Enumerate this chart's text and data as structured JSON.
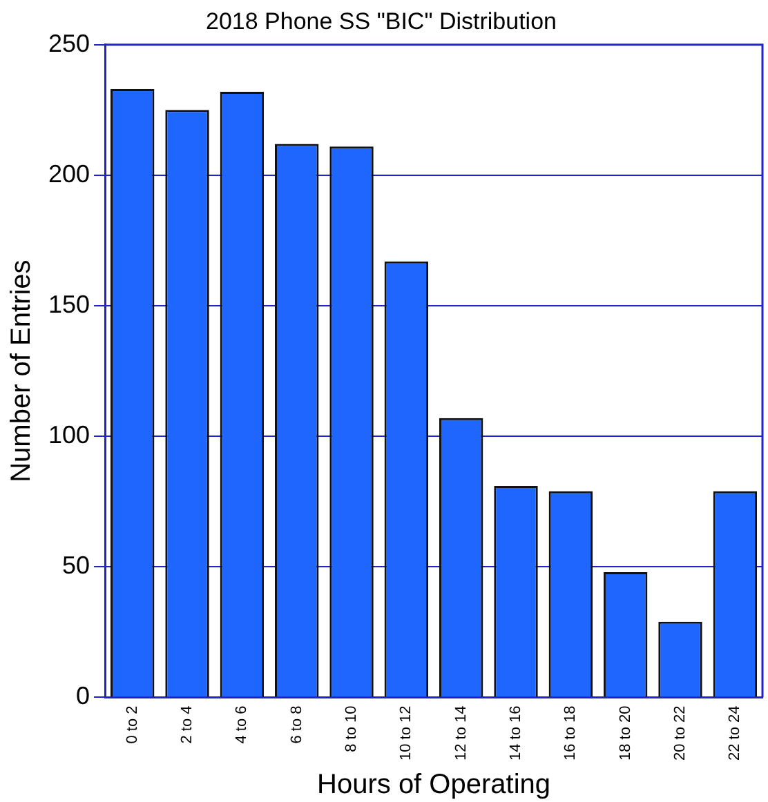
{
  "chart_data": {
    "type": "bar",
    "title": "2018 Phone SS \"BIC\" Distribution",
    "xlabel": "Hours of Operating",
    "ylabel": "Number of Entries",
    "categories": [
      "0 to 2",
      "2 to 4",
      "4 to 6",
      "6 to 8",
      "8 to 10",
      "10 to 12",
      "12 to 14",
      "14 to 16",
      "16 to 18",
      "18 to 20",
      "20 to 22",
      "22 to 24"
    ],
    "values": [
      233,
      225,
      232,
      212,
      211,
      167,
      107,
      81,
      79,
      48,
      29,
      79
    ],
    "color": "#1f66ff",
    "ylim": [
      0,
      250
    ],
    "yticks": [
      0,
      50,
      100,
      150,
      200,
      250
    ],
    "grid": "y"
  }
}
